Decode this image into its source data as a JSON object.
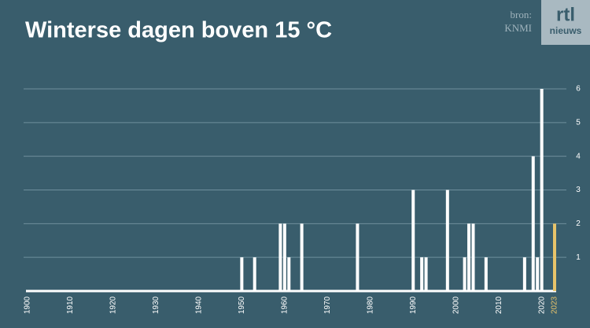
{
  "chart_data": {
    "type": "bar",
    "title": "Winterse dagen boven 15 °C",
    "source": [
      "bron:",
      "KNMI"
    ],
    "logo": [
      "rtl",
      "nieuws"
    ],
    "x": [
      1900,
      1901,
      1902,
      1903,
      1904,
      1905,
      1906,
      1907,
      1908,
      1909,
      1910,
      1911,
      1912,
      1913,
      1914,
      1915,
      1916,
      1917,
      1918,
      1919,
      1920,
      1921,
      1922,
      1923,
      1924,
      1925,
      1926,
      1927,
      1928,
      1929,
      1930,
      1931,
      1932,
      1933,
      1934,
      1935,
      1936,
      1937,
      1938,
      1939,
      1940,
      1941,
      1942,
      1943,
      1944,
      1945,
      1946,
      1947,
      1948,
      1949,
      1950,
      1951,
      1952,
      1953,
      1954,
      1955,
      1956,
      1957,
      1958,
      1959,
      1960,
      1961,
      1962,
      1963,
      1964,
      1965,
      1966,
      1967,
      1968,
      1969,
      1970,
      1971,
      1972,
      1973,
      1974,
      1975,
      1976,
      1977,
      1978,
      1979,
      1980,
      1981,
      1982,
      1983,
      1984,
      1985,
      1986,
      1987,
      1988,
      1989,
      1990,
      1991,
      1992,
      1993,
      1994,
      1995,
      1996,
      1997,
      1998,
      1999,
      2000,
      2001,
      2002,
      2003,
      2004,
      2005,
      2006,
      2007,
      2008,
      2009,
      2010,
      2011,
      2012,
      2013,
      2014,
      2015,
      2016,
      2017,
      2018,
      2019,
      2020,
      2021,
      2022,
      2023
    ],
    "values": [
      0,
      0,
      0,
      0,
      0,
      0,
      0,
      0,
      0,
      0,
      0,
      0,
      0,
      0,
      0,
      0,
      0,
      0,
      0,
      0,
      0,
      0,
      0,
      0,
      0,
      0,
      0,
      0,
      0,
      0,
      0,
      0,
      0,
      0,
      0,
      0,
      0,
      0,
      0,
      0,
      0,
      0,
      0,
      0,
      0,
      0,
      0,
      0,
      0,
      0,
      1,
      0,
      0,
      1,
      0,
      0,
      0,
      0,
      0,
      2,
      2,
      1,
      0,
      0,
      2,
      0,
      0,
      0,
      0,
      0,
      0,
      0,
      0,
      0,
      0,
      0,
      0,
      2,
      0,
      0,
      0,
      0,
      0,
      0,
      0,
      0,
      0,
      0,
      0,
      0,
      3,
      0,
      1,
      1,
      0,
      0,
      0,
      0,
      3,
      0,
      0,
      0,
      1,
      2,
      2,
      0,
      0,
      1,
      0,
      0,
      0,
      0,
      0,
      0,
      0,
      0,
      1,
      0,
      4,
      1,
      6,
      0,
      0,
      2
    ],
    "color": "#ffffff",
    "highlight_x": 2023,
    "highlight_color": "#e8c46a",
    "xlim": [
      1900,
      2023
    ],
    "xticks": [
      1900,
      1910,
      1920,
      1930,
      1940,
      1950,
      1960,
      1970,
      1980,
      1990,
      2000,
      2010,
      2020,
      2023
    ],
    "ylim": [
      0,
      6
    ],
    "yticks": [
      1,
      2,
      3,
      4,
      5,
      6
    ],
    "grid": true
  }
}
